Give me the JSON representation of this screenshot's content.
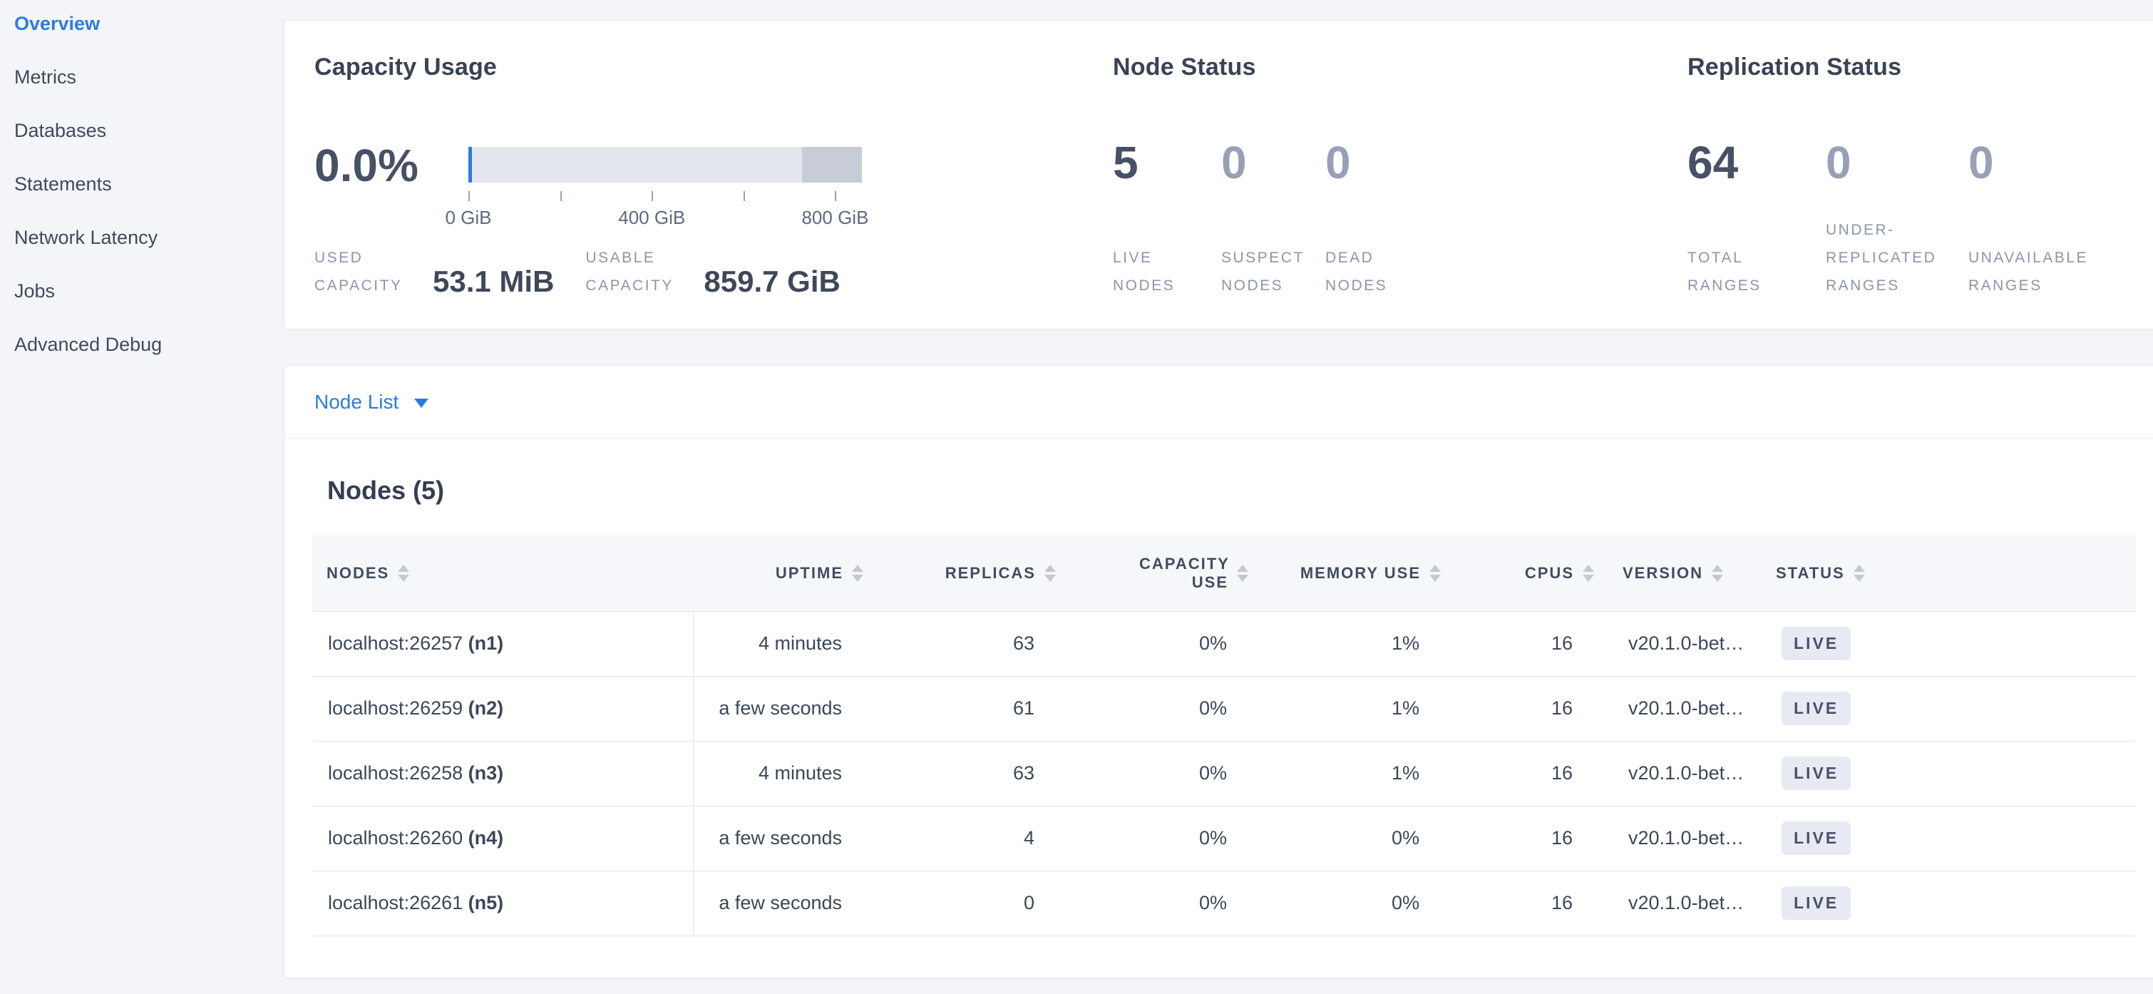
{
  "sidebar": {
    "items": [
      {
        "label": "Overview",
        "active": true
      },
      {
        "label": "Metrics",
        "active": false
      },
      {
        "label": "Databases",
        "active": false
      },
      {
        "label": "Statements",
        "active": false
      },
      {
        "label": "Network Latency",
        "active": false
      },
      {
        "label": "Jobs",
        "active": false
      },
      {
        "label": "Advanced Debug",
        "active": false
      }
    ]
  },
  "capacity": {
    "title": "Capacity Usage",
    "percent": "0.0%",
    "gauge": {
      "range_gib": [
        0,
        860
      ],
      "tick_labels": [
        "0 GiB",
        "400 GiB",
        "800 GiB"
      ],
      "used_marker_gib": 0,
      "secondary_segment_start_gib": 725
    },
    "stats": [
      {
        "label": "USED CAPACITY",
        "value": "53.1 MiB"
      },
      {
        "label": "USABLE CAPACITY",
        "value": "859.7 GiB"
      }
    ]
  },
  "node_status": {
    "title": "Node Status",
    "stats": [
      {
        "value": "5",
        "label": "LIVE NODES"
      },
      {
        "value": "0",
        "label": "SUSPECT NODES"
      },
      {
        "value": "0",
        "label": "DEAD NODES"
      }
    ]
  },
  "replication": {
    "title": "Replication Status",
    "stats": [
      {
        "value": "64",
        "label": "TOTAL RANGES"
      },
      {
        "value": "0",
        "label": "UNDER-REPLICATED RANGES"
      },
      {
        "value": "0",
        "label": "UNAVAILABLE RANGES"
      }
    ]
  },
  "node_list": {
    "dropdown_label": "Node List",
    "section_title": "Nodes (5)",
    "table": {
      "columns": [
        {
          "label": "NODES"
        },
        {
          "label": "UPTIME"
        },
        {
          "label": "REPLICAS"
        },
        {
          "label": "CAPACITY USE"
        },
        {
          "label": "MEMORY USE"
        },
        {
          "label": "CPUS"
        },
        {
          "label": "VERSION"
        },
        {
          "label": "STATUS"
        }
      ],
      "rows": [
        {
          "address": "localhost:26257",
          "node_id": "(n1)",
          "uptime": "4 minutes",
          "replicas": "63",
          "capacity_use": "0%",
          "memory_use": "1%",
          "cpus": "16",
          "version": "v20.1.0-bet…",
          "status": "LIVE"
        },
        {
          "address": "localhost:26259",
          "node_id": "(n2)",
          "uptime": "a few seconds",
          "replicas": "61",
          "capacity_use": "0%",
          "memory_use": "1%",
          "cpus": "16",
          "version": "v20.1.0-bet…",
          "status": "LIVE"
        },
        {
          "address": "localhost:26258",
          "node_id": "(n3)",
          "uptime": "4 minutes",
          "replicas": "63",
          "capacity_use": "0%",
          "memory_use": "1%",
          "cpus": "16",
          "version": "v20.1.0-bet…",
          "status": "LIVE"
        },
        {
          "address": "localhost:26260",
          "node_id": "(n4)",
          "uptime": "a few seconds",
          "replicas": "4",
          "capacity_use": "0%",
          "memory_use": "0%",
          "cpus": "16",
          "version": "v20.1.0-bet…",
          "status": "LIVE"
        },
        {
          "address": "localhost:26261",
          "node_id": "(n5)",
          "uptime": "a few seconds",
          "replicas": "0",
          "capacity_use": "0%",
          "memory_use": "0%",
          "cpus": "16",
          "version": "v20.1.0-bet…",
          "status": "LIVE"
        }
      ]
    }
  },
  "colors": {
    "accent_blue": "#2b7ce0",
    "page_background": "#f4f5f9",
    "text_dark": "#3e4858",
    "text_muted_label": "#8c95aa",
    "muted_number": "#97a0b7",
    "badge_background": "#e7eaf3",
    "gauge_track": "#e3e6ed",
    "gauge_secondary": "#c7ccd7"
  }
}
